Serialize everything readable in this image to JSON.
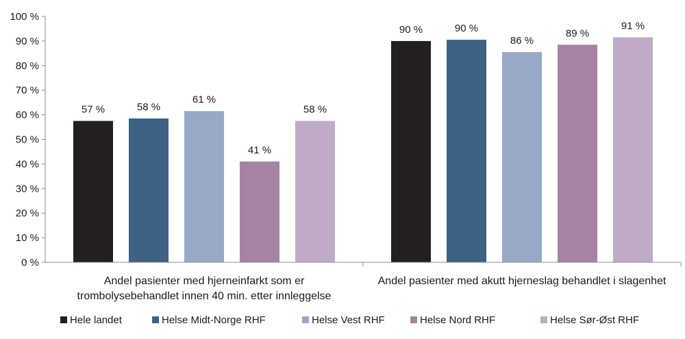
{
  "chart_data": {
    "type": "bar",
    "categories": [
      [
        "Andel pasienter med hjerneinfarkt som er",
        "trombolysebehandlet innen 40 min. etter innleggelse"
      ],
      [
        "Andel pasienter med akutt hjerneslag behandlet i slagenhet"
      ]
    ],
    "series": [
      {
        "name": "Hele landet",
        "color": "#231f20",
        "values": [
          57.5,
          90
        ],
        "labels": [
          "57 %",
          "90 %"
        ]
      },
      {
        "name": "Helse Midt-Norge RHF",
        "color": "#3d6283",
        "values": [
          58.5,
          90.5
        ],
        "labels": [
          "58 %",
          "90 %"
        ]
      },
      {
        "name": "Helse Vest RHF",
        "color": "#97a9c6",
        "values": [
          61.5,
          85.5
        ],
        "labels": [
          "61 %",
          "86 %"
        ]
      },
      {
        "name": "Helse Nord RHF",
        "color": "#a584a3",
        "values": [
          41,
          88.5
        ],
        "labels": [
          "41 %",
          "89 %"
        ]
      },
      {
        "name": "Helse Sør-Øst RHF",
        "color": "#bfabc7",
        "values": [
          57.5,
          91.5
        ],
        "labels": [
          "58 %",
          "91 %"
        ]
      }
    ],
    "y_ticks": [
      "0 %",
      "10 %",
      "20 %",
      "30 %",
      "40 %",
      "50 %",
      "60 %",
      "70 %",
      "80 %",
      "90 %",
      "100 %"
    ],
    "ylim": [
      0,
      100
    ],
    "grid": false,
    "legend_position": "bottom"
  }
}
